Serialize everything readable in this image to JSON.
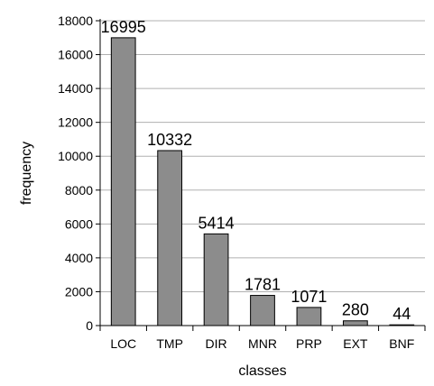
{
  "chart_data": {
    "type": "bar",
    "xlabel": "classes",
    "ylabel": "frequency",
    "categories": [
      "LOC",
      "TMP",
      "DIR",
      "MNR",
      "PRP",
      "EXT",
      "BNF"
    ],
    "values": [
      16995,
      10332,
      5414,
      1781,
      1071,
      280,
      44
    ],
    "data_labels": [
      "16995",
      "10332",
      "5414",
      "1781",
      "1071",
      "280",
      "44"
    ],
    "ylim": [
      0,
      18000
    ],
    "yticks": [
      0,
      2000,
      4000,
      6000,
      8000,
      10000,
      12000,
      14000,
      16000,
      18000
    ],
    "ytick_labels": [
      "0",
      "2000",
      "4000",
      "6000",
      "8000",
      "10000",
      "12000",
      "14000",
      "16000",
      "18000"
    ],
    "grid": "horizontal",
    "bar_color": "#8c8c8c",
    "bar_edge_color": "#000000",
    "grid_color": "#b0b0b0"
  }
}
